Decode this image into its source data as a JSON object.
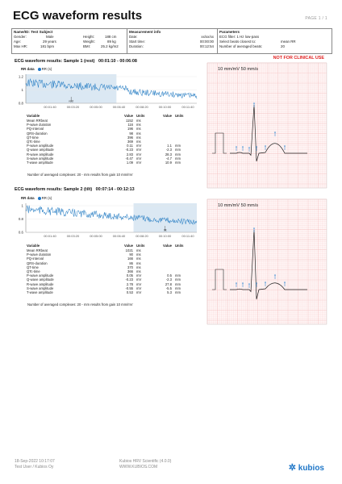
{
  "title": "ECG waveform results",
  "page_no": "PAGE 1 / 1",
  "header": {
    "subject": {
      "heading": "Name/ID: Test Subject",
      "rows": [
        [
          "Gender:",
          "Male",
          "Height:",
          "188 cm"
        ],
        [
          "Age:",
          "29 years",
          "Weight:",
          "89 kg"
        ],
        [
          "Max HR:",
          "181 bpm",
          "BMI:",
          "25.2 kg/m2"
        ]
      ]
    },
    "measurement": {
      "heading": "Measurement info",
      "rows": [
        [
          "Date:",
          "xx/xx/xx"
        ],
        [
          "Start time:",
          "00:00:00"
        ],
        [
          "Duration:",
          "00:12:54"
        ]
      ]
    },
    "parameters": {
      "heading": "Parameters",
      "rows": [
        [
          "ECG filter: 1 Hz low-pass",
          ""
        ],
        [
          "Select beats closest to:",
          "mean RR"
        ],
        [
          "Number of averaged beats:",
          "20"
        ]
      ]
    }
  },
  "not_clinical": "NOT FOR CLINICAL USE",
  "samples": [
    {
      "title": "ECG waveform results: Sample 1 (rest)",
      "time_range": "00:01:10 - 00:06:08",
      "rr_legend_title": "RR data",
      "rr_legend_series": "RR (s)",
      "rr_yticks": [
        "1.2",
        "1",
        "0.8"
      ],
      "rr_xticks": [
        "00:01:40",
        "00:03:20",
        "00:05:00",
        "00:06:40",
        "00:08:20",
        "00:10:00",
        "00:11:40"
      ],
      "rr_marker": "rest",
      "ecg_scale": "10 mm/mV  50 mm/s",
      "table_headers": [
        "Variable",
        "Value",
        "Units",
        "Value",
        "Units"
      ],
      "params": [
        [
          "Mean RRbeat",
          "1152",
          "ms",
          "",
          ""
        ],
        [
          "P-wave duration",
          "116",
          "ms",
          "",
          ""
        ],
        [
          "PQ-interval",
          "196",
          "ms",
          "",
          ""
        ],
        [
          "QRS-duration",
          "98",
          "ms",
          "",
          ""
        ],
        [
          "QT-time",
          "396",
          "ms",
          "",
          ""
        ],
        [
          "QTc-time",
          "369",
          "ms",
          "",
          ""
        ],
        [
          "P-wave amplitude",
          "0.11",
          "mV",
          "1.1",
          "mm"
        ],
        [
          "Q-wave amplitude",
          "-0.23",
          "mV",
          "-2.3",
          "mm"
        ],
        [
          "R-wave amplitude",
          "2.83",
          "mV",
          "28.3",
          "mm"
        ],
        [
          "S-wave amplitude",
          "-0.47",
          "mV",
          "-4.7",
          "mm"
        ],
        [
          "T-wave amplitude",
          "1.09",
          "mV",
          "10.9",
          "mm"
        ]
      ],
      "note": "Number of averaged complexes: 20    -    mm results from gain 10 mm/mV"
    },
    {
      "title": "ECG waveform results: Sample 2 (tilt)",
      "time_range": "00:07:14 - 00:12:13",
      "rr_legend_title": "RR data",
      "rr_legend_series": "RR (s)",
      "rr_yticks": [
        "1",
        "0.8",
        "0.6"
      ],
      "rr_xticks": [
        "00:01:40",
        "00:03:20",
        "00:05:00",
        "00:06:40",
        "00:08:20",
        "00:10:00",
        "00:11:40"
      ],
      "rr_marker": "tilt",
      "ecg_scale": "10 mm/mV  50 mm/s",
      "table_headers": [
        "Variable",
        "Value",
        "Units",
        "Value",
        "Units"
      ],
      "params": [
        [
          "Mean RRbeat",
          "1021",
          "ms",
          "",
          ""
        ],
        [
          "P-wave duration",
          "90",
          "ms",
          "",
          ""
        ],
        [
          "PQ-interval",
          "166",
          "ms",
          "",
          ""
        ],
        [
          "QRS-duration",
          "86",
          "ms",
          "",
          ""
        ],
        [
          "QT-time",
          "370",
          "ms",
          "",
          ""
        ],
        [
          "QTc-time",
          "366",
          "ms",
          "",
          ""
        ],
        [
          "P-wave amplitude",
          "0.05",
          "mV",
          "0.5",
          "mm"
        ],
        [
          "Q-wave amplitude",
          "-0.23",
          "mV",
          "-2.3",
          "mm"
        ],
        [
          "R-wave amplitude",
          "2.78",
          "mV",
          "27.8",
          "mm"
        ],
        [
          "S-wave amplitude",
          "-0.55",
          "mV",
          "-5.5",
          "mm"
        ],
        [
          "T-wave amplitude",
          "0.53",
          "mV",
          "5.3",
          "mm"
        ]
      ],
      "note": "Number of averaged complexes: 20    -    mm results from gain 10 mm/mV"
    }
  ],
  "footer": {
    "left_line1": "18-Sep-2022 10:17:07",
    "left_line2": "Test User / Kubios Oy",
    "mid_line1": "Kubios HRV Scientific (4.0.0)",
    "mid_line2": "WWW.KUBIOS.COM",
    "brand": "kubios"
  },
  "colors": {
    "accent": "#1f77c8",
    "warning": "#e02020",
    "grid": "#f3b9b9",
    "highlight": "#dbe8f3"
  }
}
